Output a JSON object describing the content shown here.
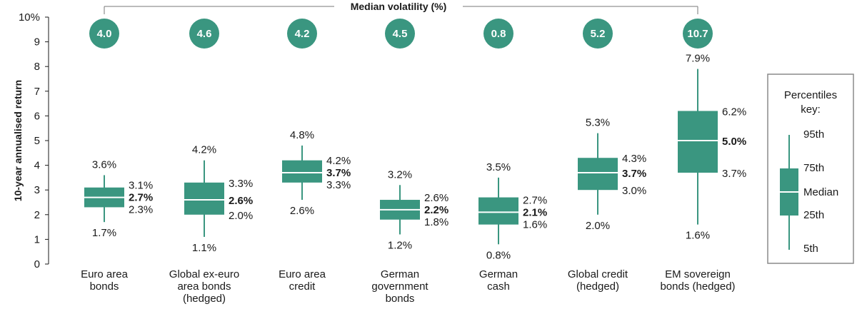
{
  "chart_data": {
    "type": "box",
    "ylabel": "10-year annualised return",
    "y_ticks": [
      "0",
      "1",
      "2",
      "3",
      "4",
      "5",
      "6",
      "7",
      "8",
      "9",
      "10%"
    ],
    "ylim": [
      0,
      10
    ],
    "volatility_title": "Median volatility (%)",
    "accent_color": "#3a9680",
    "categories": [
      {
        "label": [
          "Euro area",
          "bonds"
        ],
        "p5": 1.7,
        "p25": 2.3,
        "median": 2.7,
        "p75": 3.1,
        "p95": 3.6,
        "volatility": "4.0",
        "labels": {
          "p5": "1.7%",
          "p25": "2.3%",
          "median": "2.7%",
          "p75": "3.1%",
          "p95": "3.6%"
        }
      },
      {
        "label": [
          "Global ex-euro",
          "area bonds",
          "(hedged)"
        ],
        "p5": 1.1,
        "p25": 2.0,
        "median": 2.6,
        "p75": 3.3,
        "p95": 4.2,
        "volatility": "4.6",
        "labels": {
          "p5": "1.1%",
          "p25": "2.0%",
          "median": "2.6%",
          "p75": "3.3%",
          "p95": "4.2%"
        }
      },
      {
        "label": [
          "Euro area",
          "credit"
        ],
        "p5": 2.6,
        "p25": 3.3,
        "median": 3.7,
        "p75": 4.2,
        "p95": 4.8,
        "volatility": "4.2",
        "labels": {
          "p5": "2.6%",
          "p25": "3.3%",
          "median": "3.7%",
          "p75": "4.2%",
          "p95": "4.8%"
        }
      },
      {
        "label": [
          "German",
          "government",
          "bonds"
        ],
        "p5": 1.2,
        "p25": 1.8,
        "median": 2.2,
        "p75": 2.6,
        "p95": 3.2,
        "volatility": "4.5",
        "labels": {
          "p5": "1.2%",
          "p25": "1.8%",
          "median": "2.2%",
          "p75": "2.6%",
          "p95": "3.2%"
        }
      },
      {
        "label": [
          "German",
          "cash"
        ],
        "p5": 0.8,
        "p25": 1.6,
        "median": 2.1,
        "p75": 2.7,
        "p95": 3.5,
        "volatility": "0.8",
        "labels": {
          "p5": "0.8%",
          "p25": "1.6%",
          "median": "2.1%",
          "p75": "2.7%",
          "p95": "3.5%"
        }
      },
      {
        "label": [
          "Global credit",
          "(hedged)"
        ],
        "p5": 2.0,
        "p25": 3.0,
        "median": 3.7,
        "p75": 4.3,
        "p95": 5.3,
        "volatility": "5.2",
        "labels": {
          "p5": "2.0%",
          "p25": "3.0%",
          "median": "3.7%",
          "p75": "4.3%",
          "p95": "5.3%"
        }
      },
      {
        "label": [
          "EM sovereign",
          "bonds (hedged)"
        ],
        "p5": 1.6,
        "p25": 3.7,
        "median": 5.0,
        "p75": 6.2,
        "p95": 7.9,
        "volatility": "10.7",
        "labels": {
          "p5": "1.6%",
          "p25": "3.7%",
          "median": "5.0%",
          "p75": "6.2%",
          "p95": "7.9%"
        }
      }
    ],
    "key": {
      "title": [
        "Percentiles",
        "key:"
      ],
      "p95": "95th",
      "p75": "75th",
      "median": "Median",
      "p25": "25th",
      "p5": "5th"
    }
  }
}
